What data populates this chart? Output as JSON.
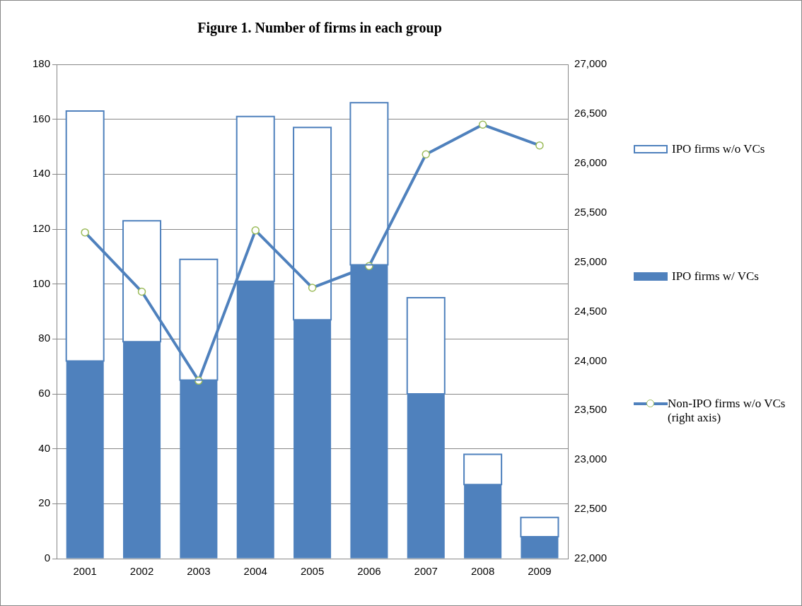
{
  "chart_data": {
    "type": "bar",
    "title": "Figure 1. Number of firms in each group",
    "categories": [
      "2001",
      "2002",
      "2003",
      "2004",
      "2005",
      "2006",
      "2007",
      "2008",
      "2009"
    ],
    "stacked": true,
    "series": [
      {
        "name": "IPO firms w/ VCs",
        "color": "#4f81bd",
        "values": [
          72,
          79,
          65,
          101,
          87,
          107,
          60,
          27,
          8
        ]
      },
      {
        "name": "IPO firms w/o VCs",
        "color": "#ffffff",
        "values": [
          91,
          44,
          44,
          60,
          70,
          59,
          35,
          11,
          7
        ]
      },
      {
        "name": "Non-IPO firms w/o VCs\n(right axis)",
        "type": "line",
        "axis": "y2",
        "color": "#4f81bd",
        "values": [
          25300,
          24700,
          23800,
          25320,
          24740,
          24960,
          26090,
          26390,
          26180
        ]
      }
    ],
    "ylim": [
      0,
      180
    ],
    "yticks": [
      0,
      20,
      40,
      60,
      80,
      100,
      120,
      140,
      160,
      180
    ],
    "y2lim": [
      22000,
      27000
    ],
    "y2ticks": [
      {
        "value": 22000,
        "label": "22,000"
      },
      {
        "value": 22500,
        "label": "22,500"
      },
      {
        "value": 23000,
        "label": "23,000"
      },
      {
        "value": 23500,
        "label": "23,500"
      },
      {
        "value": 24000,
        "label": "24,000"
      },
      {
        "value": 24500,
        "label": "24,500"
      },
      {
        "value": 25000,
        "label": "25,000"
      },
      {
        "value": 25500,
        "label": "25,500"
      },
      {
        "value": 26000,
        "label": "26,000"
      },
      {
        "value": 26500,
        "label": "26,500"
      },
      {
        "value": 27000,
        "label": "27,000"
      }
    ],
    "grid": "y",
    "legend": "right",
    "marker": "circle",
    "line_style": "solid"
  }
}
